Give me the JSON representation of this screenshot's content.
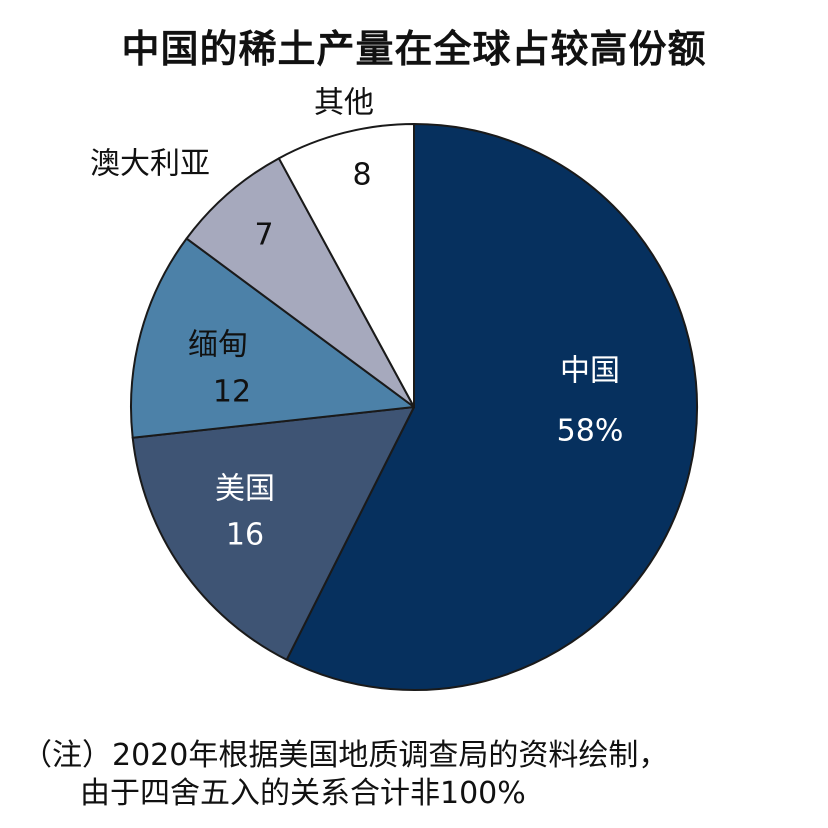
{
  "chart_data": {
    "type": "pie",
    "title": "中国的稀土产量在全球占较高份额",
    "unit": "%",
    "start_angle_deg": 0,
    "direction": "clockwise",
    "slices": [
      {
        "name": "中国",
        "value": 58,
        "value_label": "58%",
        "color": "#06305e",
        "label_color": "#ffffff",
        "label_position": "inside"
      },
      {
        "name": "美国",
        "value": 16,
        "value_label": "16",
        "color": "#3e5474",
        "label_color": "#ffffff",
        "label_position": "inside"
      },
      {
        "name": "缅甸",
        "value": 12,
        "value_label": "12",
        "color": "#4c81a8",
        "label_color": "#111111",
        "label_position": "inside"
      },
      {
        "name": "澳大利亚",
        "value": 7,
        "value_label": "7",
        "color": "#a6a9bd",
        "label_color": "#111111",
        "label_position": "outside"
      },
      {
        "name": "其他",
        "value": 8,
        "value_label": "8",
        "color": "#ffffff",
        "label_color": "#111111",
        "label_position": "outside"
      }
    ],
    "stroke_color": "#1a1a1a"
  },
  "notes": {
    "line1": "（注）2020年根据美国地质调查局的资料绘制，",
    "line2": "由于四舍五入的关系合计非100%"
  }
}
